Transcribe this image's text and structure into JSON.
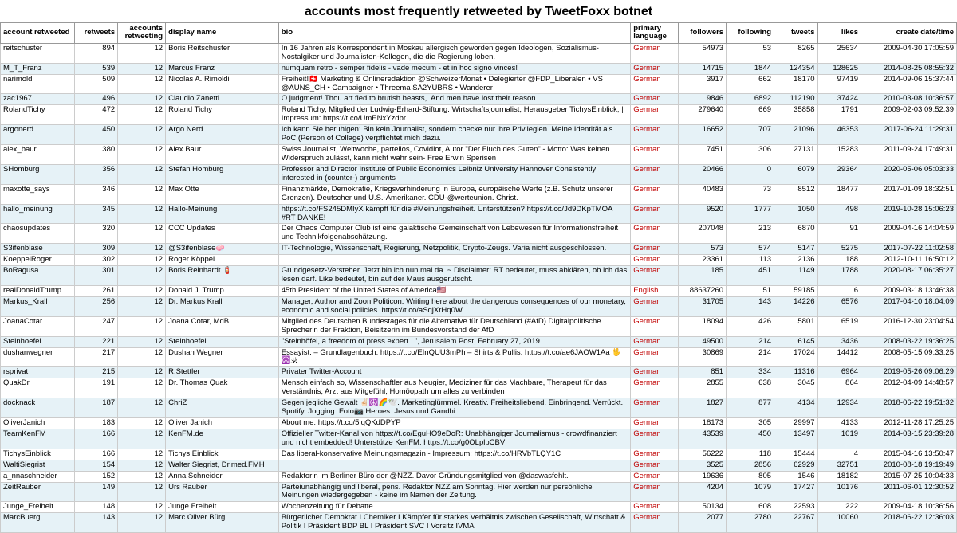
{
  "title": "accounts most frequently retweeted by TweetFoxx botnet",
  "columns": [
    "account retweeted",
    "retweets",
    "accounts retweeting",
    "display name",
    "bio",
    "primary language",
    "followers",
    "following",
    "tweets",
    "likes",
    "create date/time"
  ],
  "rows": [
    {
      "account": "reitschuster",
      "retweets": 894,
      "acc": 12,
      "display": "Boris Reitschuster",
      "bio": "In 16 Jahren als Korrespondent in Moskau allergisch geworden gegen Ideologen, Sozialismus-Nostalgiker und Journalisten-Kollegen, die die Regierung loben.",
      "lang": "German",
      "followers": 54973,
      "following": 53,
      "tweets": 8265,
      "likes": 25634,
      "create": "2009-04-30 17:05:59"
    },
    {
      "account": "M_T_Franz",
      "retweets": 539,
      "acc": 12,
      "display": "Marcus Franz",
      "bio": "numquam retro - semper fidelis - vade mecum - et in hoc signo vinces!",
      "lang": "German",
      "followers": 14715,
      "following": 1844,
      "tweets": 124354,
      "likes": 128625,
      "create": "2014-08-25 08:55:32"
    },
    {
      "account": "narimoldi",
      "retweets": 509,
      "acc": 12,
      "display": "Nicolas A. Rimoldi",
      "bio": "Freiheit!🇨🇭 Marketing & Onlineredaktion @SchweizerMonat • Delegierter @FDP_Liberalen • VS @AUNS_CH • Campaigner • Threema SA2YUBRS • Wanderer",
      "lang": "German",
      "followers": 3917,
      "following": 662,
      "tweets": 18170,
      "likes": 97419,
      "create": "2014-09-06 15:37:44"
    },
    {
      "account": "zac1967",
      "retweets": 496,
      "acc": 12,
      "display": "Claudio Zanetti",
      "bio": "O judgment! Thou art fled to brutish beasts,. And men have lost their reason.",
      "lang": "German",
      "followers": 9846,
      "following": 6892,
      "tweets": 112190,
      "likes": 37424,
      "create": "2010-03-08 10:36:57"
    },
    {
      "account": "RolandTichy",
      "retweets": 472,
      "acc": 12,
      "display": "Roland Tichy",
      "bio": "Roland Tichy, Mitglied der Ludwig-Erhard-Stiftung. Wirtschaftsjournalist, Herausgeber TichysEinblick; | Impressum: https://t.co/UmENxYzdbr",
      "lang": "German",
      "followers": 279640,
      "following": 669,
      "tweets": 35858,
      "likes": 1791,
      "create": "2009-02-03 09:52:39"
    },
    {
      "account": "argonerd",
      "retweets": 450,
      "acc": 12,
      "display": "Argo Nerd",
      "bio": "Ich kann Sie beruhigen: Bin kein Journalist, sondern checke nur ihre Privilegien. Meine Identität als PoC (Person of Collage) verpflichtet mich dazu.",
      "lang": "German",
      "followers": 16652,
      "following": 707,
      "tweets": 21096,
      "likes": 46353,
      "create": "2017-06-24 11:29:31"
    },
    {
      "account": "alex_baur",
      "retweets": 380,
      "acc": 12,
      "display": "Alex Baur",
      "bio": "Swiss Journalist, Weltwoche, parteilos, Covidiot, Autor \"Der Fluch des Guten\" - Motto: Was keinen Widerspruch zulässt, kann nicht wahr sein- Free Erwin Sperisen",
      "lang": "German",
      "followers": 7451,
      "following": 306,
      "tweets": 27131,
      "likes": 15283,
      "create": "2011-09-24 17:49:31"
    },
    {
      "account": "SHomburg",
      "retweets": 356,
      "acc": 12,
      "display": "Stefan Homburg",
      "bio": "Professor and Director  Institute of Public Economics  Leibniz University Hannover   Consistently interested in (counter-) arguments",
      "lang": "German",
      "followers": 20466,
      "following": 0,
      "tweets": 6079,
      "likes": 29364,
      "create": "2020-05-06 05:03:33"
    },
    {
      "account": "maxotte_says",
      "retweets": 346,
      "acc": 12,
      "display": "Max Otte",
      "bio": "Finanzmärkte, Demokratie, Kriegsverhinderung in Europa, europäische Werte (z.B. Schutz unserer Grenzen). Deutscher und U.S.-Amerikaner. CDU-@werteunion. Christ.",
      "lang": "German",
      "followers": 40483,
      "following": 73,
      "tweets": 8512,
      "likes": 18477,
      "create": "2017-01-09 18:32:51"
    },
    {
      "account": "hallo_meinung",
      "retweets": 345,
      "acc": 12,
      "display": "Hallo-Meinung",
      "bio": "https://t.co/FS245DMIyX kämpft für die #Meinungsfreiheit. Unterstützen? https://t.co/Jd9DKpTMOA #RT DANKE!",
      "lang": "German",
      "followers": 9520,
      "following": 1777,
      "tweets": 1050,
      "likes": 498,
      "create": "2019-10-28 15:06:23"
    },
    {
      "account": "chaosupdates",
      "retweets": 320,
      "acc": 12,
      "display": "CCC Updates",
      "bio": "Der Chaos Computer Club ist eine galaktische Gemeinschaft von Lebewesen für Informationsfreiheit und Technikfolgenabschätzung.",
      "lang": "German",
      "followers": 207048,
      "following": 213,
      "tweets": 6870,
      "likes": 91,
      "create": "2009-04-16 14:04:59"
    },
    {
      "account": "S3ifenblase",
      "retweets": 309,
      "acc": 12,
      "display": "@S3ifenblase🧼",
      "bio": "IT-Technologie, Wissenschaft, Regierung, Netzpolitik, Crypto-Zeugs. Varia nicht ausgeschlossen.",
      "lang": "German",
      "followers": 573,
      "following": 574,
      "tweets": 5147,
      "likes": 5275,
      "create": "2017-07-22 11:02:58"
    },
    {
      "account": "KoeppelRoger",
      "retweets": 302,
      "acc": 12,
      "display": "Roger Köppel",
      "bio": "",
      "lang": "German",
      "followers": 23361,
      "following": 113,
      "tweets": 2136,
      "likes": 188,
      "create": "2012-10-11 16:50:12"
    },
    {
      "account": "BoRagusa",
      "retweets": 301,
      "acc": 12,
      "display": "Boris Reinhardt 🧯",
      "bio": "Grundgesetz-Versteher. Jetzt bin ich nun mal da. ~ Disclaimer: RT bedeutet, muss abklären, ob ich das lesen darf. Like bedeutet, bin auf der Maus ausgerutscht.",
      "lang": "German",
      "followers": 185,
      "following": 451,
      "tweets": 1149,
      "likes": 1788,
      "create": "2020-08-17 06:35:27"
    },
    {
      "account": "realDonaldTrump",
      "retweets": 261,
      "acc": 12,
      "display": "Donald J. Trump",
      "bio": "45th President of the United States of America🇺🇸",
      "lang": "English",
      "followers": 88637260,
      "following": 51,
      "tweets": 59185,
      "likes": 6,
      "create": "2009-03-18 13:46:38"
    },
    {
      "account": "Markus_Krall",
      "retweets": 256,
      "acc": 12,
      "display": "Dr. Markus Krall",
      "bio": "Manager, Author and Zoon Politicon. Writing here about the dangerous consequences of our monetary, economic and social policies.  https://t.co/aSqjXrHq0W",
      "lang": "German",
      "followers": 31705,
      "following": 143,
      "tweets": 14226,
      "likes": 6576,
      "create": "2017-04-10 18:04:09"
    },
    {
      "account": "JoanaCotar",
      "retweets": 247,
      "acc": 12,
      "display": "Joana Cotar, MdB",
      "bio": "Mitglied des Deutschen Bundestages für die Alternative für Deutschland (#AfD) Digitalpolitische Sprecherin der Fraktion, Beisitzerin im Bundesvorstand der AfD",
      "lang": "German",
      "followers": 18094,
      "following": 426,
      "tweets": 5801,
      "likes": 6519,
      "create": "2016-12-30 23:04:54"
    },
    {
      "account": "Steinhoefel",
      "retweets": 221,
      "acc": 12,
      "display": "Steinhoefel",
      "bio": "\"Steinhöfel, a freedom of press expert...\", Jerusalem Post, February 27, 2019.",
      "lang": "German",
      "followers": 49500,
      "following": 214,
      "tweets": 6145,
      "likes": 3436,
      "create": "2008-03-22 19:36:25"
    },
    {
      "account": "dushanwegner",
      "retweets": 217,
      "acc": 12,
      "display": "Dushan Wegner",
      "bio": "Essayist. – Grundlagenbuch: https://t.co/EInQUU3mPh – Shirts & Pullis: https://t.co/ae6JAOW1Aa 🖖☮️🕉",
      "lang": "German",
      "followers": 30869,
      "following": 214,
      "tweets": 17024,
      "likes": 14412,
      "create": "2008-05-15 09:33:25"
    },
    {
      "account": "rsprivat",
      "retweets": 215,
      "acc": 12,
      "display": "R.Stettler",
      "bio": "Privater Twitter-Account",
      "lang": "German",
      "followers": 851,
      "following": 334,
      "tweets": 11316,
      "likes": 6964,
      "create": "2019-05-26 09:06:29"
    },
    {
      "account": "QuakDr",
      "retweets": 191,
      "acc": 12,
      "display": "Dr. Thomas Quak",
      "bio": "Mensch einfach so, Wissenschaftler aus Neugier, Mediziner für  das Machbare, Therapeut für das Verständnis, Arzt aus Mitgefühl,  Homöopath um alles zu verbinden",
      "lang": "German",
      "followers": 2855,
      "following": 638,
      "tweets": 3045,
      "likes": 864,
      "create": "2012-04-09 14:48:57"
    },
    {
      "account": "docknack",
      "retweets": 187,
      "acc": 12,
      "display": "ChriZ",
      "bio": "Gegen jegliche Gewalt ✌🏻☮️🌈🕊️. Marketinglümmel. Kreativ. Freiheitsliebend. Einbringend. Verrückt. Spotify. Jogging. Foto📷  Heroes: Jesus und Gandhi.",
      "lang": "German",
      "followers": 1827,
      "following": 877,
      "tweets": 4134,
      "likes": 12934,
      "create": "2018-06-22 19:51:32"
    },
    {
      "account": "OliverJanich",
      "retweets": 183,
      "acc": 12,
      "display": "Oliver Janich",
      "bio": "About me: https://t.co/5iqQKdDPYP",
      "lang": "German",
      "followers": 18173,
      "following": 305,
      "tweets": 29997,
      "likes": 4133,
      "create": "2012-11-28 17:25:25"
    },
    {
      "account": "TeamKenFM",
      "retweets": 166,
      "acc": 12,
      "display": "KenFM.de",
      "bio": "Offizieller Twitter-Kanal von https://t.co/EguHO9eDoR: Unabhängiger Journalismus - crowdfinanziert und nicht embedded! Unterstütze KenFM: https://t.co/g0OLplpCBV",
      "lang": "German",
      "followers": 43539,
      "following": 450,
      "tweets": 13497,
      "likes": 1019,
      "create": "2014-03-15 23:39:28"
    },
    {
      "account": "TichysEinblick",
      "retweets": 166,
      "acc": 12,
      "display": "Tichys Einblick",
      "bio": "Das liberal-konservative Meinungsmagazin -   Impressum: https://t.co/HRVbTLQY1C",
      "lang": "German",
      "followers": 56222,
      "following": 118,
      "tweets": 15444,
      "likes": 4,
      "create": "2015-04-16 13:50:47"
    },
    {
      "account": "WaltiSiegrist",
      "retweets": 154,
      "acc": 12,
      "display": "Walter Siegrist, Dr.med.FMH",
      "bio": "",
      "lang": "German",
      "followers": 3525,
      "following": 2856,
      "tweets": 62929,
      "likes": 32751,
      "create": "2010-08-18 19:19:49"
    },
    {
      "account": "a_nnaschneider",
      "retweets": 152,
      "acc": 12,
      "display": "Anna Schneider",
      "bio": "Redaktorin im Berliner Büro der @NZZ. Davor Gründungsmitglied von @daswasfehlt.",
      "lang": "German",
      "followers": 19636,
      "following": 805,
      "tweets": 1546,
      "likes": 18182,
      "create": "2015-07-25 10:04:33"
    },
    {
      "account": "ZeitRauber",
      "retweets": 149,
      "acc": 12,
      "display": "Urs Rauber",
      "bio": "Parteiunabhängig und liberal, pens. Redaktor NZZ am Sonntag. Hier werden nur persönliche Meinungen wiedergegeben - keine im Namen der Zeitung.",
      "lang": "German",
      "followers": 4204,
      "following": 1079,
      "tweets": 17427,
      "likes": 10176,
      "create": "2011-06-01 12:30:52"
    },
    {
      "account": "Junge_Freiheit",
      "retweets": 148,
      "acc": 12,
      "display": "Junge Freiheit",
      "bio": "Wochenzeitung für Debatte",
      "lang": "German",
      "followers": 50134,
      "following": 608,
      "tweets": 22593,
      "likes": 222,
      "create": "2009-04-18 10:36:56"
    },
    {
      "account": "MarcBuergi",
      "retweets": 143,
      "acc": 12,
      "display": "Marc Oliver Bürgi",
      "bio": "Bürgerlicher Demokrat I Chemiker I Kämpfer für starkes Verhältnis zwischen Gesellschaft, Wirtschaft & Politik I Präsident BDP BL I Präsident SVC I Vorsitz IVMA",
      "lang": "German",
      "followers": 2077,
      "following": 2780,
      "tweets": 22767,
      "likes": 10060,
      "create": "2018-06-22 12:36:03"
    }
  ],
  "colors": {
    "row_even": "#e6f2f7",
    "row_odd": "#ffffff",
    "lang_highlight": "#c00000",
    "header_border": "#999999",
    "cell_border": "#cccccc"
  }
}
